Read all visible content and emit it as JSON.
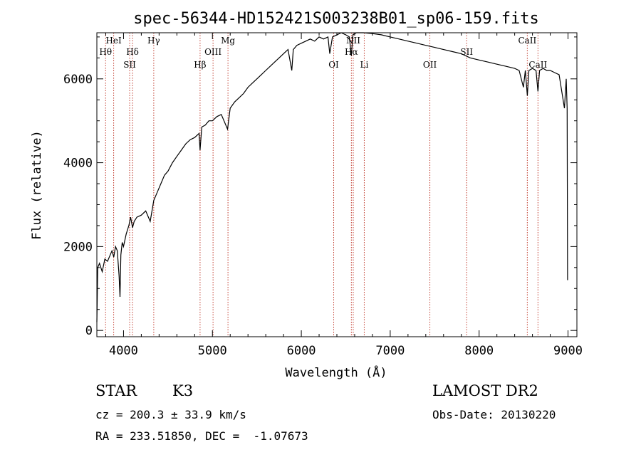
{
  "chart_data": {
    "type": "line",
    "title": "spec-56344-HD152421S003238B01_sp06-159.fits",
    "xlabel": "Wavelength (Å)",
    "ylabel": "Flux (relative)",
    "xlim": [
      3700,
      9100
    ],
    "ylim": [
      -150,
      7100
    ],
    "x_ticks": [
      4000,
      5000,
      6000,
      7000,
      8000,
      9000
    ],
    "y_ticks": [
      0,
      2000,
      4000,
      6000
    ],
    "x_tick_labels": [
      "4000",
      "5000",
      "6000",
      "7000",
      "8000",
      "9000"
    ],
    "y_tick_labels": [
      "0",
      "2000",
      "4000",
      "6000"
    ],
    "grid": false,
    "series": [
      {
        "color": "#000000",
        "x": [
          3700,
          3710,
          3730,
          3760,
          3790,
          3820,
          3850,
          3870,
          3890,
          3910,
          3930,
          3950,
          3960,
          3970,
          3985,
          4000,
          4030,
          4060,
          4080,
          4101,
          4120,
          4150,
          4200,
          4250,
          4300,
          4340,
          4360,
          4380,
          4420,
          4460,
          4500,
          4550,
          4600,
          4650,
          4700,
          4750,
          4800,
          4850,
          4861,
          4880,
          4920,
          4960,
          5000,
          5050,
          5100,
          5170,
          5200,
          5250,
          5300,
          5350,
          5400,
          5450,
          5500,
          5550,
          5600,
          5650,
          5700,
          5750,
          5800,
          5850,
          5893,
          5910,
          5950,
          6000,
          6050,
          6100,
          6150,
          6200,
          6250,
          6300,
          6320,
          6350,
          6400,
          6450,
          6500,
          6540,
          6563,
          6580,
          6620,
          6700,
          6800,
          6900,
          7000,
          7100,
          7200,
          7300,
          7400,
          7500,
          7600,
          7700,
          7800,
          7900,
          8000,
          8100,
          8200,
          8300,
          8400,
          8450,
          8498,
          8520,
          8542,
          8560,
          8600,
          8640,
          8662,
          8680,
          8720,
          8760,
          8800,
          8850,
          8900,
          8960,
          8980,
          8990,
          8995
        ],
        "y": [
          200,
          1500,
          1600,
          1400,
          1700,
          1650,
          1800,
          1900,
          1750,
          2000,
          1900,
          1300,
          800,
          1800,
          2100,
          2000,
          2300,
          2500,
          2700,
          2450,
          2600,
          2700,
          2750,
          2850,
          2600,
          3100,
          3200,
          3300,
          3500,
          3700,
          3800,
          4000,
          4150,
          4300,
          4450,
          4550,
          4600,
          4700,
          4300,
          4850,
          4900,
          5000,
          5000,
          5100,
          5150,
          4800,
          5300,
          5450,
          5550,
          5650,
          5800,
          5900,
          6000,
          6100,
          6200,
          6300,
          6400,
          6500,
          6600,
          6700,
          6200,
          6700,
          6800,
          6850,
          6900,
          6950,
          6900,
          7000,
          6950,
          7000,
          6600,
          7000,
          7050,
          7100,
          7050,
          7000,
          6550,
          7050,
          7100,
          7100,
          7080,
          7050,
          7000,
          6950,
          6900,
          6850,
          6800,
          6750,
          6700,
          6650,
          6600,
          6500,
          6450,
          6400,
          6350,
          6300,
          6250,
          6200,
          5800,
          6200,
          5600,
          6200,
          6250,
          6200,
          5700,
          6200,
          6250,
          6200,
          6200,
          6150,
          6100,
          5300,
          6000,
          5300,
          1200
        ]
      }
    ],
    "line_labels": [
      {
        "name": "Hθ",
        "x": 3798,
        "row": 1
      },
      {
        "name": "HeI",
        "x": 3889,
        "row": 0
      },
      {
        "name": "SII",
        "x": 4069,
        "row": 2
      },
      {
        "name": "Hδ",
        "x": 4101,
        "row": 1
      },
      {
        "name": "Hγ",
        "x": 4340,
        "row": 0
      },
      {
        "name": "Hβ",
        "x": 4861,
        "row": 2
      },
      {
        "name": "OIII",
        "x": 5007,
        "row": 1
      },
      {
        "name": "Mg",
        "x": 5175,
        "row": 0
      },
      {
        "name": "OI",
        "x": 6364,
        "row": 2
      },
      {
        "name": "NII",
        "x": 6584,
        "row": 0
      },
      {
        "name": "Hα",
        "x": 6563,
        "row": 1
      },
      {
        "name": "Li",
        "x": 6708,
        "row": 2
      },
      {
        "name": "OII",
        "x": 7446,
        "row": 2
      },
      {
        "name": "SII",
        "x": 7860,
        "row": 1
      },
      {
        "name": "CaII",
        "x": 8542,
        "row": 0
      },
      {
        "name": "CaII",
        "x": 8662,
        "row": 2
      }
    ]
  },
  "info": {
    "object_class": "STAR",
    "subclass": "K3",
    "survey": "LAMOST DR2",
    "redshift": "cz = 200.3 ± 33.9 km/s",
    "obs_date": "Obs-Date: 20130220",
    "coords": "RA = 233.51850, DEC =  -1.07673"
  },
  "colors": {
    "line_marker": "#c0392b",
    "spectrum": "#000000"
  }
}
